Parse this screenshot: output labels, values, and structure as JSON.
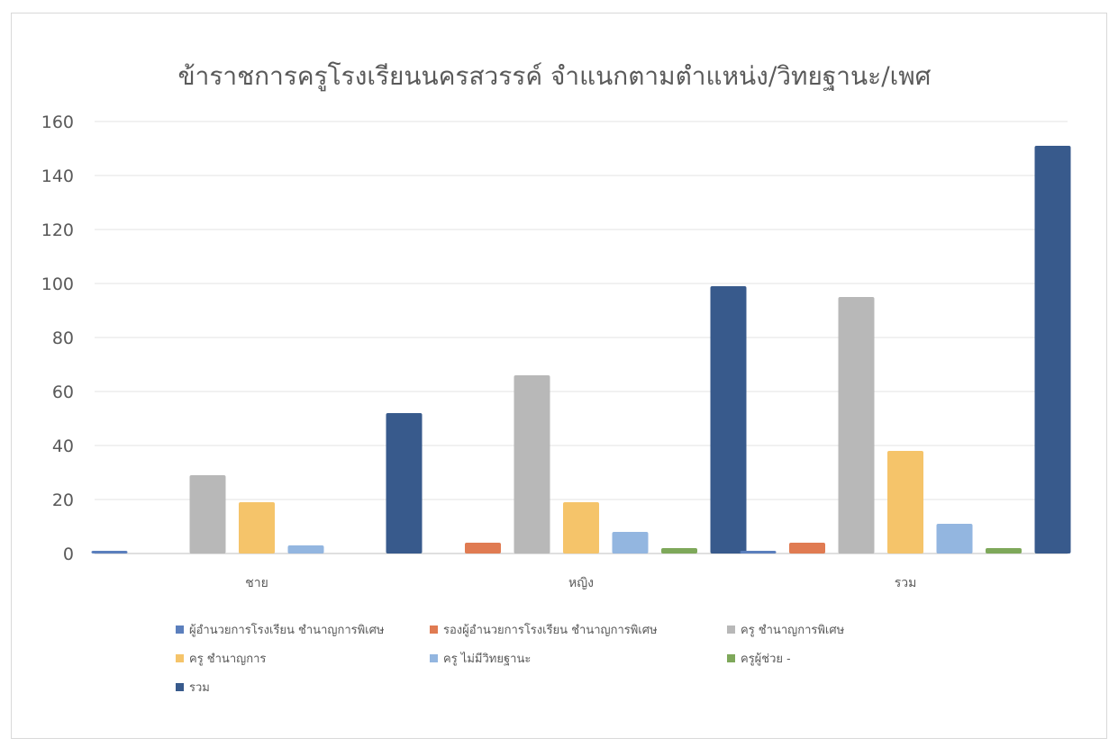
{
  "chart_data": {
    "type": "bar",
    "title": "ข้าราชการครูโรงเรียนนครสวรรค์ จำแนกตามตำแหน่ง/วิทยฐานะ/เพศ",
    "xlabel": "",
    "ylabel": "",
    "ylim": [
      0,
      160
    ],
    "yticks": [
      "0",
      "20",
      "40",
      "60",
      "80",
      "100",
      "120",
      "140",
      "160"
    ],
    "categories": [
      "ชาย",
      "หญิง",
      "รวม"
    ],
    "grid": true,
    "legend_position": "bottom",
    "series": [
      {
        "name": "ผู้อำนวยการโรงเรียน ชำนาญการพิเศษ",
        "color": "#5b7fbd",
        "values": [
          1,
          0,
          1
        ]
      },
      {
        "name": "รองผู้อำนวยการโรงเรียน ชำนาญการพิเศษ",
        "color": "#e07b52",
        "values": [
          0,
          4,
          4
        ]
      },
      {
        "name": "ครู ชำนาญการพิเศษ",
        "color": "#b8b8b8",
        "values": [
          29,
          66,
          95
        ]
      },
      {
        "name": "ครู ชำนาญการ",
        "color": "#f5c46a",
        "values": [
          19,
          19,
          38
        ]
      },
      {
        "name": "ครู ไม่มีวิทยฐานะ",
        "color": "#93b6e0",
        "values": [
          3,
          8,
          11
        ]
      },
      {
        "name": "ครูผู้ช่วย -",
        "color": "#7ea85a",
        "values": [
          0,
          2,
          2
        ]
      },
      {
        "name": "รวม",
        "color": "#385a8c",
        "values": [
          52,
          99,
          151
        ]
      }
    ]
  }
}
